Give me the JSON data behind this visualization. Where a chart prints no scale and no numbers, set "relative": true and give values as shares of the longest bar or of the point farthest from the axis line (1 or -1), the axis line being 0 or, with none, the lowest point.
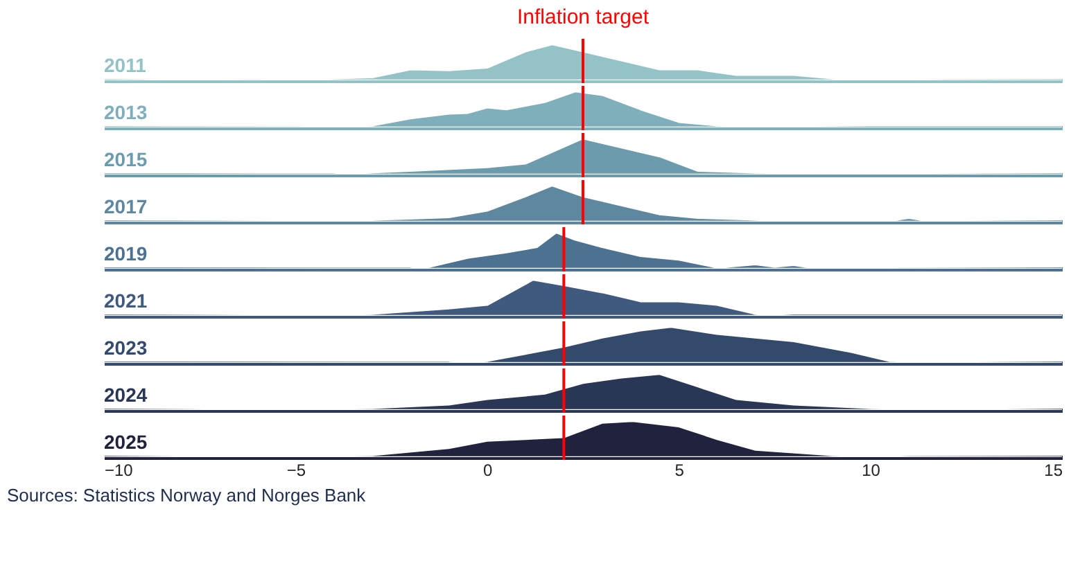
{
  "chart_data": [
    {
      "type": "area",
      "relative": true,
      "xlim": [
        -10,
        15
      ],
      "tick_labels": false,
      "x": [
        -10,
        -8,
        -6,
        -4,
        -3,
        -2,
        -1,
        0,
        1,
        1.7,
        2.5,
        3.5,
        4.5,
        5.5,
        6.5,
        8,
        9,
        10,
        12,
        15
      ],
      "series": [
        {
          "name": "2011",
          "color": "#93c2c7",
          "values": [
            0,
            0.02,
            0.01,
            0.05,
            0.08,
            0.3,
            0.28,
            0.35,
            0.8,
            1,
            0.8,
            0.55,
            0.3,
            0.3,
            0.15,
            0.15,
            0.05,
            0.02,
            0.01,
            0
          ]
        }
      ],
      "ref_lines": [
        {
          "axis": "x",
          "value": 2.5,
          "label": "Inflation target",
          "color": "#ff0000"
        }
      ]
    },
    {
      "type": "area",
      "relative": true,
      "xlim": [
        -10,
        15
      ],
      "tick_labels": false,
      "x": [
        -10,
        -5,
        -3,
        -2,
        -1,
        -0.5,
        0,
        0.5,
        1,
        1.5,
        2.3,
        3,
        4,
        5,
        6,
        8,
        10,
        15
      ],
      "series": [
        {
          "name": "2013",
          "color": "#7fafbb",
          "values": [
            0,
            0.01,
            0.05,
            0.25,
            0.38,
            0.4,
            0.55,
            0.5,
            0.6,
            0.7,
            1,
            0.9,
            0.5,
            0.15,
            0.05,
            0.02,
            0,
            0
          ]
        }
      ],
      "ref_lines": [
        {
          "axis": "x",
          "value": 2.5,
          "color": "#ff0000"
        }
      ]
    },
    {
      "type": "area",
      "relative": true,
      "xlim": [
        -10,
        15
      ],
      "tick_labels": false,
      "x": [
        -10,
        -4,
        -2,
        0,
        1,
        2.5,
        3.5,
        4.5,
        5.5,
        7,
        10,
        15
      ],
      "series": [
        {
          "name": "2015",
          "color": "#6c9bae",
          "values": [
            0,
            0.01,
            0.1,
            0.2,
            0.3,
            1,
            0.75,
            0.5,
            0.1,
            0.05,
            0.02,
            0
          ]
        }
      ],
      "ref_lines": [
        {
          "axis": "x",
          "value": 2.5,
          "color": "#ff0000"
        }
      ]
    },
    {
      "type": "area",
      "relative": true,
      "xlim": [
        -10,
        15
      ],
      "tick_labels": false,
      "x": [
        -10,
        -4,
        -2,
        -1,
        0,
        1,
        1.7,
        2.5,
        3.5,
        4.5,
        5.5,
        8,
        10.5,
        11,
        11.5,
        15
      ],
      "series": [
        {
          "name": "2017",
          "color": "#5d88a0",
          "values": [
            0,
            0.02,
            0.08,
            0.12,
            0.3,
            0.7,
            1,
            0.7,
            0.45,
            0.2,
            0.1,
            0.02,
            0.02,
            0.1,
            0.02,
            0
          ]
        }
      ],
      "ref_lines": [
        {
          "axis": "x",
          "value": 2.5,
          "color": "#ff0000"
        }
      ]
    },
    {
      "type": "area",
      "relative": true,
      "xlim": [
        -10,
        15
      ],
      "tick_labels": false,
      "x": [
        -10,
        -2,
        -1.5,
        -0.5,
        0.5,
        1.3,
        1.8,
        2.3,
        3,
        4,
        5,
        6,
        7,
        7.5,
        8,
        8.5,
        15
      ],
      "series": [
        {
          "name": "2019",
          "color": "#4c7191",
          "values": [
            0,
            0.01,
            0.05,
            0.3,
            0.45,
            0.6,
            1,
            0.8,
            0.6,
            0.35,
            0.25,
            0.03,
            0.12,
            0.05,
            0.1,
            0.02,
            0
          ]
        }
      ],
      "ref_lines": [
        {
          "axis": "x",
          "value": 2,
          "color": "#ff0000"
        }
      ]
    },
    {
      "type": "area",
      "relative": true,
      "xlim": [
        -10,
        15
      ],
      "tick_labels": false,
      "x": [
        -10,
        -5,
        -3,
        -1,
        0,
        1.2,
        2,
        3,
        4,
        5,
        6,
        7,
        8,
        15
      ],
      "series": [
        {
          "name": "2021",
          "color": "#40597f",
          "values": [
            0,
            0.02,
            0.05,
            0.2,
            0.3,
            1,
            0.85,
            0.65,
            0.4,
            0.4,
            0.3,
            0.05,
            0,
            0
          ]
        }
      ],
      "ref_lines": [
        {
          "axis": "x",
          "value": 2,
          "color": "#ff0000"
        }
      ]
    },
    {
      "type": "area",
      "relative": true,
      "xlim": [
        -10,
        15
      ],
      "tick_labels": false,
      "x": [
        -10,
        -1,
        0,
        1,
        2,
        3,
        4,
        4.8,
        6,
        8,
        9.5,
        10.5,
        12,
        15
      ],
      "series": [
        {
          "name": "2023",
          "color": "#344a6d",
          "values": [
            0,
            0.01,
            0.05,
            0.25,
            0.45,
            0.7,
            0.9,
            1,
            0.8,
            0.6,
            0.3,
            0.05,
            0.02,
            0
          ]
        }
      ],
      "ref_lines": [
        {
          "axis": "x",
          "value": 2,
          "color": "#ff0000"
        }
      ]
    },
    {
      "type": "area",
      "relative": true,
      "xlim": [
        -10,
        15
      ],
      "tick_labels": false,
      "x": [
        -10,
        -5,
        -3,
        -1,
        0,
        1,
        1.5,
        2.5,
        3.5,
        4.5,
        5.5,
        6.5,
        8,
        10,
        15
      ],
      "series": [
        {
          "name": "2024",
          "color": "#2a3656",
          "values": [
            0,
            0.03,
            0.05,
            0.15,
            0.3,
            0.4,
            0.45,
            0.75,
            0.9,
            1,
            0.65,
            0.3,
            0.15,
            0.05,
            0
          ]
        }
      ],
      "ref_lines": [
        {
          "axis": "x",
          "value": 2,
          "color": "#ff0000"
        }
      ]
    },
    {
      "type": "area",
      "relative": true,
      "xlim": [
        -10,
        15
      ],
      "xticks": [
        {
          "value": -10,
          "label": "−10"
        },
        {
          "value": -5,
          "label": "−5"
        },
        0,
        5,
        10,
        15
      ],
      "x": [
        -10,
        -3,
        -1,
        0,
        1,
        2,
        3,
        3.8,
        5,
        6,
        7,
        9,
        11,
        15
      ],
      "series": [
        {
          "name": "2025",
          "color": "#20223e",
          "values": [
            0,
            0.05,
            0.25,
            0.45,
            0.5,
            0.55,
            0.95,
            1,
            0.85,
            0.5,
            0.2,
            0.05,
            0.01,
            0
          ]
        }
      ],
      "ref_lines": [
        {
          "axis": "x",
          "value": 2,
          "color": "#ff0000"
        }
      ],
      "annotations": [
        "Sources: Statistics Norway and Norges Bank"
      ]
    }
  ]
}
